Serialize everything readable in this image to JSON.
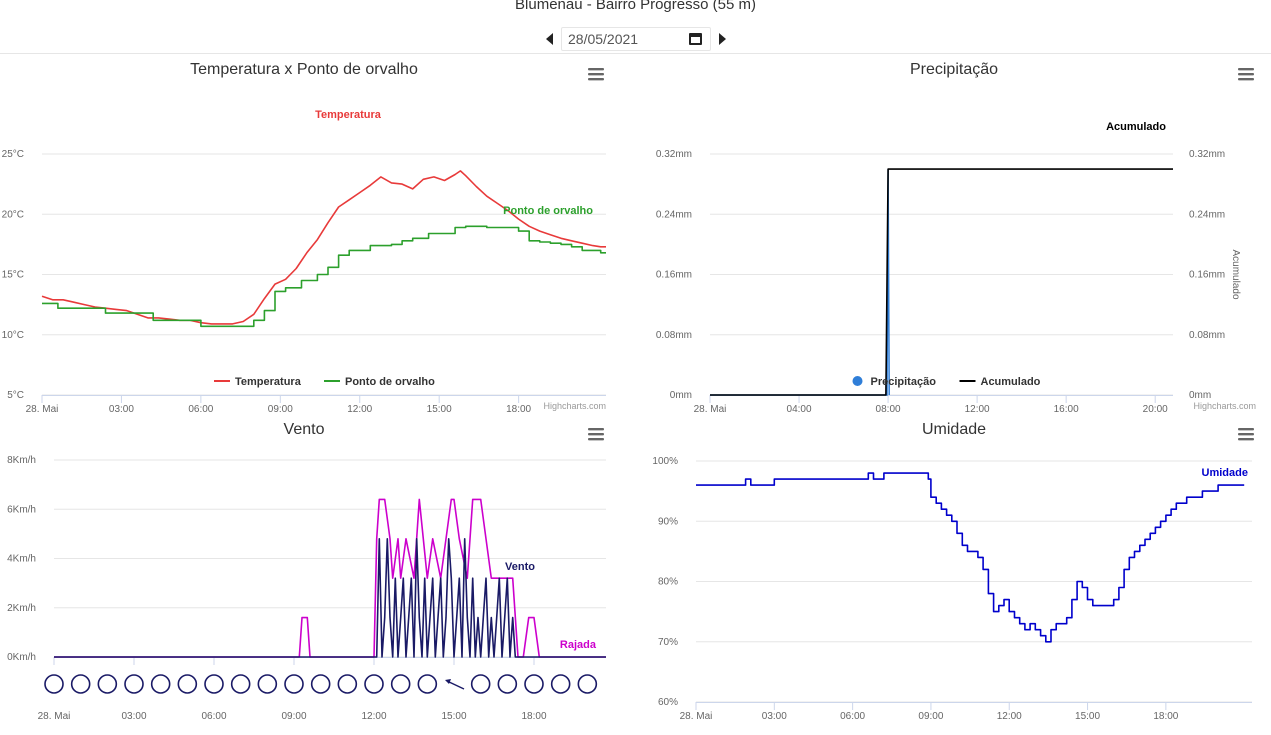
{
  "header": {
    "title": "Blumenau - Bairro Progresso (55 m)",
    "date": "28/05/2021"
  },
  "credits": "Highcharts.com",
  "chart_data": [
    {
      "id": "temp",
      "type": "line",
      "title": "Temperatura x Ponto de orvalho",
      "x_range": [
        0,
        21.3
      ],
      "x_ticks": [
        {
          "v": 0,
          "label": "28. Mai"
        },
        {
          "v": 3,
          "label": "03:00"
        },
        {
          "v": 6,
          "label": "06:00"
        },
        {
          "v": 9,
          "label": "09:00"
        },
        {
          "v": 12,
          "label": "12:00"
        },
        {
          "v": 15,
          "label": "15:00"
        },
        {
          "v": 18,
          "label": "18:00"
        }
      ],
      "ylim": [
        5,
        25
      ],
      "y_ticks": [
        {
          "v": 5,
          "label": "5°C"
        },
        {
          "v": 10,
          "label": "10°C"
        },
        {
          "v": 15,
          "label": "15°C"
        },
        {
          "v": 20,
          "label": "20°C"
        },
        {
          "v": 25,
          "label": "25°C"
        }
      ],
      "grid": true,
      "legend": "bottom-center",
      "series": [
        {
          "name": "Temperatura",
          "color": "#e83a3a",
          "step": false,
          "x": [
            0.0,
            0.4,
            0.8,
            1.2,
            1.6,
            2.0,
            2.4,
            2.8,
            3.2,
            3.6,
            4.0,
            4.4,
            4.8,
            5.2,
            5.6,
            6.0,
            6.4,
            6.8,
            7.2,
            7.6,
            8.0,
            8.4,
            8.8,
            9.2,
            9.6,
            10.0,
            10.4,
            10.8,
            11.2,
            11.6,
            12.0,
            12.4,
            12.8,
            13.2,
            13.6,
            14.0,
            14.4,
            14.8,
            15.2,
            15.6,
            15.8,
            16.0,
            16.4,
            16.8,
            17.2,
            17.6,
            18.0,
            18.4,
            18.8,
            19.2,
            19.6,
            20.0,
            20.4,
            20.8,
            21.1,
            21.3
          ],
          "y": [
            13.2,
            12.9,
            12.9,
            12.7,
            12.5,
            12.3,
            12.2,
            12.1,
            12.0,
            11.7,
            11.4,
            11.4,
            11.3,
            11.2,
            11.2,
            11.0,
            10.9,
            10.9,
            10.9,
            11.1,
            11.7,
            13.0,
            14.2,
            14.6,
            15.5,
            16.8,
            17.9,
            19.3,
            20.6,
            21.2,
            21.8,
            22.4,
            23.1,
            22.6,
            22.5,
            22.1,
            22.9,
            23.1,
            22.8,
            23.3,
            23.6,
            23.2,
            22.3,
            21.5,
            20.9,
            20.3,
            19.6,
            19.0,
            18.6,
            18.3,
            18.0,
            17.8,
            17.6,
            17.4,
            17.3,
            17.3
          ]
        },
        {
          "name": "Ponto de orvalho",
          "color": "#2ca02c",
          "step": true,
          "x": [
            0.0,
            0.6,
            1.2,
            1.8,
            2.4,
            3.0,
            3.6,
            4.2,
            4.8,
            5.4,
            6.0,
            6.6,
            7.2,
            7.6,
            8.0,
            8.4,
            8.8,
            9.2,
            9.8,
            10.4,
            10.8,
            11.2,
            11.6,
            12.0,
            12.4,
            12.8,
            13.2,
            13.6,
            14.0,
            14.6,
            15.2,
            15.6,
            16.0,
            16.4,
            16.8,
            17.2,
            17.6,
            18.0,
            18.4,
            18.8,
            19.2,
            19.6,
            20.0,
            20.4,
            20.8,
            21.1,
            21.3
          ],
          "y": [
            12.6,
            12.2,
            12.2,
            12.2,
            11.8,
            11.8,
            11.8,
            11.2,
            11.2,
            11.2,
            10.7,
            10.7,
            10.7,
            10.7,
            11.2,
            12.0,
            13.6,
            13.9,
            14.5,
            15.0,
            15.6,
            16.6,
            17.0,
            17.0,
            17.4,
            17.4,
            17.5,
            17.8,
            18.0,
            18.4,
            18.4,
            18.9,
            19.0,
            19.0,
            18.9,
            18.9,
            18.9,
            18.6,
            17.8,
            17.7,
            17.6,
            17.5,
            17.3,
            17.0,
            17.0,
            16.8,
            16.8
          ]
        }
      ]
    },
    {
      "id": "precip",
      "type": "line",
      "title": "Precipitação",
      "x_range": [
        0,
        20.8
      ],
      "x_ticks": [
        {
          "v": 0,
          "label": "28. Mai"
        },
        {
          "v": 4,
          "label": "04:00"
        },
        {
          "v": 8,
          "label": "08:00"
        },
        {
          "v": 12,
          "label": "12:00"
        },
        {
          "v": 16,
          "label": "16:00"
        },
        {
          "v": 20,
          "label": "20:00"
        }
      ],
      "ylim": [
        0,
        0.32
      ],
      "y_ticks": [
        {
          "v": 0,
          "label": "0mm"
        },
        {
          "v": 0.08,
          "label": "0.08mm"
        },
        {
          "v": 0.16,
          "label": "0.16mm"
        },
        {
          "v": 0.24,
          "label": "0.24mm"
        },
        {
          "v": 0.32,
          "label": "0.32mm"
        }
      ],
      "y2_ticks": [
        {
          "v": 0,
          "label": "0mm"
        },
        {
          "v": 0.08,
          "label": "0.08mm"
        },
        {
          "v": 0.16,
          "label": "0.16mm"
        },
        {
          "v": 0.24,
          "label": "0.24mm"
        },
        {
          "v": 0.32,
          "label": "0.32mm"
        }
      ],
      "y2label": "Acumulado",
      "grid": true,
      "legend": "bottom-center",
      "series": [
        {
          "name": "Precipitação",
          "color": "#2f7ed8",
          "marker": "circle",
          "x": [
            0,
            7.95,
            8.0,
            8.05
          ],
          "y": [
            0,
            0,
            0.3,
            0
          ]
        },
        {
          "name": "Acumulado",
          "color": "#000000",
          "x": [
            0,
            7.9,
            8.0,
            20.8
          ],
          "y": [
            0,
            0,
            0.3,
            0.3
          ]
        }
      ]
    },
    {
      "id": "wind",
      "type": "line",
      "title": "Vento",
      "x_range": [
        0,
        20.7
      ],
      "x_ticks": [
        {
          "v": 0,
          "label": "28. Mai"
        },
        {
          "v": 3,
          "label": "03:00"
        },
        {
          "v": 6,
          "label": "06:00"
        },
        {
          "v": 9,
          "label": "09:00"
        },
        {
          "v": 12,
          "label": "12:00"
        },
        {
          "v": 15,
          "label": "15:00"
        },
        {
          "v": 18,
          "label": "18:00"
        }
      ],
      "ylim": [
        0,
        8
      ],
      "y_ticks": [
        {
          "v": 0,
          "label": "0Km/h"
        },
        {
          "v": 2,
          "label": "2Km/h"
        },
        {
          "v": 4,
          "label": "4Km/h"
        },
        {
          "v": 6,
          "label": "6Km/h"
        },
        {
          "v": 8,
          "label": "8Km/h"
        }
      ],
      "grid": true,
      "series": [
        {
          "name": "Rajada",
          "color": "#cc00cc",
          "x": [
            0,
            9.2,
            9.3,
            9.5,
            9.6,
            12.0,
            12.1,
            12.2,
            12.4,
            12.6,
            12.7,
            12.9,
            13.0,
            13.2,
            13.5,
            13.7,
            14.0,
            14.2,
            14.5,
            14.7,
            14.9,
            15.0,
            15.2,
            15.5,
            15.7,
            16.0,
            16.2,
            16.4,
            16.6,
            16.8,
            17.2,
            17.4,
            17.6,
            17.8,
            18.0,
            18.2,
            20.7
          ],
          "y": [
            0,
            0,
            1.6,
            1.6,
            0,
            0,
            4.8,
            6.4,
            6.4,
            4.8,
            3.2,
            4.8,
            3.2,
            4.8,
            3.2,
            6.4,
            3.2,
            4.8,
            3.2,
            4.8,
            6.4,
            6.4,
            4.8,
            3.2,
            6.4,
            6.4,
            4.8,
            3.2,
            3.2,
            3.2,
            3.2,
            0,
            0,
            1.6,
            1.6,
            0,
            0
          ]
        },
        {
          "name": "Vento",
          "color": "#1a1a66",
          "x": [
            0,
            12.1,
            12.2,
            12.3,
            12.4,
            12.5,
            12.6,
            12.7,
            12.8,
            12.9,
            13.0,
            13.1,
            13.2,
            13.3,
            13.4,
            13.5,
            13.6,
            13.7,
            13.8,
            13.9,
            14.0,
            14.1,
            14.2,
            14.3,
            14.4,
            14.5,
            14.6,
            14.7,
            14.8,
            14.9,
            15.0,
            15.1,
            15.2,
            15.3,
            15.4,
            15.5,
            15.6,
            15.7,
            15.8,
            15.9,
            16.0,
            16.1,
            16.2,
            16.3,
            16.4,
            16.5,
            16.6,
            16.7,
            16.8,
            16.9,
            17.0,
            17.1,
            17.2,
            17.3,
            20.7
          ],
          "y": [
            0,
            0,
            4.8,
            0,
            1.6,
            4.8,
            1.6,
            0,
            3.2,
            0,
            1.6,
            3.2,
            0,
            1.6,
            3.2,
            0,
            4.8,
            1.6,
            0,
            3.2,
            0,
            1.6,
            3.2,
            0,
            1.6,
            3.2,
            0,
            1.6,
            4.8,
            3.2,
            0,
            1.6,
            3.2,
            0,
            4.8,
            1.6,
            0,
            3.2,
            0,
            1.6,
            0,
            1.6,
            3.2,
            0,
            1.6,
            0,
            1.6,
            3.2,
            0,
            1.6,
            3.2,
            0,
            1.6,
            0,
            0
          ]
        }
      ],
      "direction_markers": {
        "color": "#1a1a66",
        "items": [
          {
            "t": 0.0,
            "kind": "calm"
          },
          {
            "t": 1.0,
            "kind": "calm"
          },
          {
            "t": 2.0,
            "kind": "calm"
          },
          {
            "t": 3.0,
            "kind": "calm"
          },
          {
            "t": 4.0,
            "kind": "calm"
          },
          {
            "t": 5.0,
            "kind": "calm"
          },
          {
            "t": 6.0,
            "kind": "calm"
          },
          {
            "t": 7.0,
            "kind": "calm"
          },
          {
            "t": 8.0,
            "kind": "calm"
          },
          {
            "t": 9.0,
            "kind": "calm"
          },
          {
            "t": 10.0,
            "kind": "calm"
          },
          {
            "t": 11.0,
            "kind": "calm"
          },
          {
            "t": 12.0,
            "kind": "calm"
          },
          {
            "t": 13.0,
            "kind": "calm"
          },
          {
            "t": 14.0,
            "kind": "calm"
          },
          {
            "t": 15.0,
            "kind": "arrow"
          },
          {
            "t": 16.0,
            "kind": "calm"
          },
          {
            "t": 17.0,
            "kind": "calm"
          },
          {
            "t": 18.0,
            "kind": "calm"
          },
          {
            "t": 19.0,
            "kind": "calm"
          },
          {
            "t": 20.0,
            "kind": "calm"
          }
        ]
      }
    },
    {
      "id": "hum",
      "type": "line",
      "title": "Umidade",
      "x_range": [
        0,
        21.3
      ],
      "x_ticks": [
        {
          "v": 0,
          "label": "28. Mai"
        },
        {
          "v": 3,
          "label": "03:00"
        },
        {
          "v": 6,
          "label": "06:00"
        },
        {
          "v": 9,
          "label": "09:00"
        },
        {
          "v": 12,
          "label": "12:00"
        },
        {
          "v": 15,
          "label": "15:00"
        },
        {
          "v": 18,
          "label": "18:00"
        }
      ],
      "ylim": [
        60,
        100
      ],
      "y_ticks": [
        {
          "v": 60,
          "label": "60%"
        },
        {
          "v": 70,
          "label": "70%"
        },
        {
          "v": 80,
          "label": "80%"
        },
        {
          "v": 90,
          "label": "90%"
        },
        {
          "v": 100,
          "label": "100%"
        }
      ],
      "grid": true,
      "series": [
        {
          "name": "Umidade",
          "color": "#0000cc",
          "step": true,
          "x": [
            0.0,
            1.2,
            1.7,
            1.9,
            2.1,
            3.0,
            4.2,
            5.4,
            6.2,
            6.6,
            6.8,
            7.2,
            7.8,
            8.4,
            8.6,
            8.9,
            9.0,
            9.2,
            9.4,
            9.6,
            9.8,
            10.0,
            10.2,
            10.4,
            10.6,
            10.8,
            11.0,
            11.2,
            11.4,
            11.6,
            11.8,
            12.0,
            12.2,
            12.4,
            12.6,
            12.8,
            13.0,
            13.2,
            13.4,
            13.6,
            13.8,
            14.0,
            14.2,
            14.4,
            14.6,
            14.8,
            15.0,
            15.2,
            15.4,
            15.6,
            15.8,
            16.0,
            16.2,
            16.4,
            16.6,
            16.8,
            17.0,
            17.2,
            17.4,
            17.6,
            17.8,
            18.0,
            18.2,
            18.4,
            18.6,
            18.8,
            19.0,
            19.2,
            19.4,
            19.6,
            19.8,
            20.0,
            20.4,
            21.0
          ],
          "y": [
            96,
            96,
            96,
            97,
            96,
            97,
            97,
            97,
            97,
            98,
            97,
            98,
            98,
            98,
            98,
            97,
            94,
            93,
            92,
            91,
            90,
            88,
            86,
            85,
            85,
            84,
            82,
            78,
            75,
            76,
            77,
            75,
            74,
            73,
            72,
            73,
            72,
            71,
            70,
            72,
            73,
            73,
            74,
            77,
            80,
            79,
            77,
            76,
            76,
            76,
            76,
            77,
            79,
            82,
            84,
            85,
            86,
            87,
            88,
            89,
            90,
            91,
            92,
            93,
            93,
            94,
            94,
            94,
            95,
            95,
            95,
            96,
            96,
            96
          ]
        }
      ]
    }
  ]
}
